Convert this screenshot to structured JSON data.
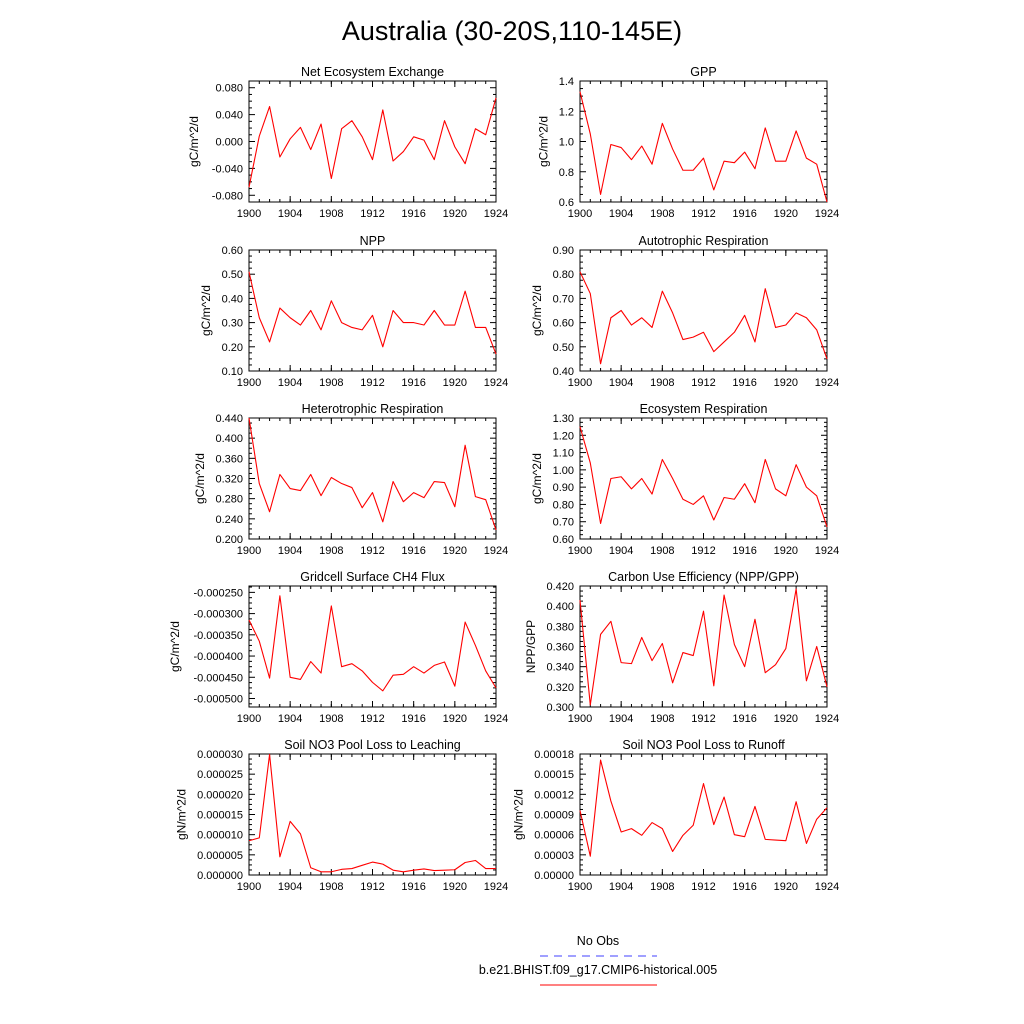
{
  "title": "Australia (30-20S,110-145E)",
  "legend": {
    "entries": [
      {
        "label": "No Obs",
        "color": "#4040ff",
        "dash": true
      },
      {
        "label": "b.e21.BHIST.f09_g17.CMIP6-historical.005",
        "color": "#ff0000",
        "dash": false
      }
    ]
  },
  "line_color": "#ff0000",
  "chart_data": [
    {
      "type": "line",
      "title": "Net Ecosystem Exchange",
      "ylabel": "gC/m^2/d",
      "xlim": [
        1900,
        1924
      ],
      "ylim": [
        -0.09,
        0.09
      ],
      "yticks": [
        -0.08,
        -0.04,
        0.0,
        0.04,
        0.08
      ],
      "ytick_labels": [
        "-0.080",
        "-0.040",
        "0.000",
        "0.040",
        "0.080"
      ],
      "xticks": [
        1900,
        1904,
        1908,
        1912,
        1916,
        1920,
        1924
      ],
      "xtick_labels": [
        "1900",
        "1904",
        "1908",
        "1912",
        "1916",
        "1920",
        "1924"
      ],
      "x": [
        1900,
        1901,
        1902,
        1903,
        1904,
        1905,
        1906,
        1907,
        1908,
        1909,
        1910,
        1911,
        1912,
        1913,
        1914,
        1915,
        1916,
        1917,
        1918,
        1919,
        1920,
        1921,
        1922,
        1923,
        1924
      ],
      "values": [
        -0.068,
        0.008,
        0.052,
        -0.023,
        0.004,
        0.021,
        -0.012,
        0.026,
        -0.055,
        0.019,
        0.031,
        0.007,
        -0.027,
        0.047,
        -0.029,
        -0.015,
        0.007,
        0.002,
        -0.027,
        0.031,
        -0.008,
        -0.033,
        0.019,
        0.01,
        0.065
      ]
    },
    {
      "type": "line",
      "title": "GPP",
      "ylabel": "gC/m^2/d",
      "xlim": [
        1900,
        1924
      ],
      "ylim": [
        0.6,
        1.4
      ],
      "yticks": [
        0.6,
        0.8,
        1.0,
        1.2,
        1.4
      ],
      "ytick_labels": [
        "0.6",
        "0.8",
        "1.0",
        "1.2",
        "1.4"
      ],
      "xticks": [
        1900,
        1904,
        1908,
        1912,
        1916,
        1920,
        1924
      ],
      "xtick_labels": [
        "1900",
        "1904",
        "1908",
        "1912",
        "1916",
        "1920",
        "1924"
      ],
      "x": [
        1900,
        1901,
        1902,
        1903,
        1904,
        1905,
        1906,
        1907,
        1908,
        1909,
        1910,
        1911,
        1912,
        1913,
        1914,
        1915,
        1916,
        1917,
        1918,
        1919,
        1920,
        1921,
        1922,
        1923,
        1924
      ],
      "values": [
        1.33,
        1.05,
        0.65,
        0.98,
        0.96,
        0.88,
        0.97,
        0.85,
        1.12,
        0.95,
        0.81,
        0.81,
        0.89,
        0.68,
        0.87,
        0.86,
        0.93,
        0.82,
        1.09,
        0.87,
        0.87,
        1.07,
        0.89,
        0.85,
        0.6
      ]
    },
    {
      "type": "line",
      "title": "NPP",
      "ylabel": "gC/m^2/d",
      "xlim": [
        1900,
        1924
      ],
      "ylim": [
        0.1,
        0.6
      ],
      "yticks": [
        0.1,
        0.2,
        0.3,
        0.4,
        0.5,
        0.6
      ],
      "ytick_labels": [
        "0.10",
        "0.20",
        "0.30",
        "0.40",
        "0.50",
        "0.60"
      ],
      "xticks": [
        1900,
        1904,
        1908,
        1912,
        1916,
        1920,
        1924
      ],
      "xtick_labels": [
        "1900",
        "1904",
        "1908",
        "1912",
        "1916",
        "1920",
        "1924"
      ],
      "x": [
        1900,
        1901,
        1902,
        1903,
        1904,
        1905,
        1906,
        1907,
        1908,
        1909,
        1910,
        1911,
        1912,
        1913,
        1914,
        1915,
        1916,
        1917,
        1918,
        1919,
        1920,
        1921,
        1922,
        1923,
        1924
      ],
      "values": [
        0.51,
        0.32,
        0.22,
        0.36,
        0.32,
        0.29,
        0.35,
        0.27,
        0.39,
        0.3,
        0.28,
        0.27,
        0.33,
        0.2,
        0.35,
        0.3,
        0.3,
        0.29,
        0.35,
        0.29,
        0.29,
        0.43,
        0.28,
        0.28,
        0.17
      ]
    },
    {
      "type": "line",
      "title": "Autotrophic Respiration",
      "ylabel": "gC/m^2/d",
      "xlim": [
        1900,
        1924
      ],
      "ylim": [
        0.4,
        0.9
      ],
      "yticks": [
        0.4,
        0.5,
        0.6,
        0.7,
        0.8,
        0.9
      ],
      "ytick_labels": [
        "0.40",
        "0.50",
        "0.60",
        "0.70",
        "0.80",
        "0.90"
      ],
      "xticks": [
        1900,
        1904,
        1908,
        1912,
        1916,
        1920,
        1924
      ],
      "xtick_labels": [
        "1900",
        "1904",
        "1908",
        "1912",
        "1916",
        "1920",
        "1924"
      ],
      "x": [
        1900,
        1901,
        1902,
        1903,
        1904,
        1905,
        1906,
        1907,
        1908,
        1909,
        1910,
        1911,
        1912,
        1913,
        1914,
        1915,
        1916,
        1917,
        1918,
        1919,
        1920,
        1921,
        1922,
        1923,
        1924
      ],
      "values": [
        0.81,
        0.72,
        0.43,
        0.62,
        0.65,
        0.59,
        0.62,
        0.58,
        0.73,
        0.64,
        0.53,
        0.54,
        0.56,
        0.48,
        0.52,
        0.56,
        0.63,
        0.52,
        0.74,
        0.58,
        0.59,
        0.64,
        0.62,
        0.57,
        0.45
      ]
    },
    {
      "type": "line",
      "title": "Heterotrophic Respiration",
      "ylabel": "gC/m^2/d",
      "xlim": [
        1900,
        1924
      ],
      "ylim": [
        0.2,
        0.44
      ],
      "yticks": [
        0.2,
        0.24,
        0.28,
        0.32,
        0.36,
        0.4,
        0.44
      ],
      "ytick_labels": [
        "0.200",
        "0.240",
        "0.280",
        "0.320",
        "0.360",
        "0.400",
        "0.440"
      ],
      "xticks": [
        1900,
        1904,
        1908,
        1912,
        1916,
        1920,
        1924
      ],
      "xtick_labels": [
        "1900",
        "1904",
        "1908",
        "1912",
        "1916",
        "1920",
        "1924"
      ],
      "x": [
        1900,
        1901,
        1902,
        1903,
        1904,
        1905,
        1906,
        1907,
        1908,
        1909,
        1910,
        1911,
        1912,
        1913,
        1914,
        1915,
        1916,
        1917,
        1918,
        1919,
        1920,
        1921,
        1922,
        1923,
        1924
      ],
      "values": [
        0.44,
        0.31,
        0.254,
        0.328,
        0.3,
        0.296,
        0.328,
        0.286,
        0.322,
        0.31,
        0.302,
        0.262,
        0.292,
        0.234,
        0.314,
        0.274,
        0.292,
        0.282,
        0.314,
        0.312,
        0.264,
        0.386,
        0.284,
        0.278,
        0.218
      ]
    },
    {
      "type": "line",
      "title": "Ecosystem Respiration",
      "ylabel": "gC/m^2/d",
      "xlim": [
        1900,
        1924
      ],
      "ylim": [
        0.6,
        1.3
      ],
      "yticks": [
        0.6,
        0.7,
        0.8,
        0.9,
        1.0,
        1.1,
        1.2,
        1.3
      ],
      "ytick_labels": [
        "0.60",
        "0.70",
        "0.80",
        "0.90",
        "1.00",
        "1.10",
        "1.20",
        "1.30"
      ],
      "xticks": [
        1900,
        1904,
        1908,
        1912,
        1916,
        1920,
        1924
      ],
      "xtick_labels": [
        "1900",
        "1904",
        "1908",
        "1912",
        "1916",
        "1920",
        "1924"
      ],
      "x": [
        1900,
        1901,
        1902,
        1903,
        1904,
        1905,
        1906,
        1907,
        1908,
        1909,
        1910,
        1911,
        1912,
        1913,
        1914,
        1915,
        1916,
        1917,
        1918,
        1919,
        1920,
        1921,
        1922,
        1923,
        1924
      ],
      "values": [
        1.25,
        1.04,
        0.69,
        0.95,
        0.96,
        0.89,
        0.95,
        0.86,
        1.06,
        0.95,
        0.83,
        0.8,
        0.85,
        0.71,
        0.84,
        0.83,
        0.92,
        0.81,
        1.06,
        0.89,
        0.85,
        1.03,
        0.9,
        0.85,
        0.67
      ]
    },
    {
      "type": "line",
      "title": "Gridcell Surface CH4 Flux",
      "ylabel": "gC/m^2/d",
      "xlim": [
        1900,
        1924
      ],
      "ylim": [
        -0.00052,
        -0.000235
      ],
      "yticks": [
        -0.0005,
        -0.00045,
        -0.0004,
        -0.00035,
        -0.0003,
        -0.00025
      ],
      "ytick_labels": [
        "-0.000500",
        "-0.000450",
        "-0.000400",
        "-0.000350",
        "-0.000300",
        "-0.000250"
      ],
      "xticks": [
        1900,
        1904,
        1908,
        1912,
        1916,
        1920,
        1924
      ],
      "xtick_labels": [
        "1900",
        "1904",
        "1908",
        "1912",
        "1916",
        "1920",
        "1924"
      ],
      "x": [
        1900,
        1901,
        1902,
        1903,
        1904,
        1905,
        1906,
        1907,
        1908,
        1909,
        1910,
        1911,
        1912,
        1913,
        1914,
        1915,
        1916,
        1917,
        1918,
        1919,
        1920,
        1921,
        1922,
        1923,
        1924
      ],
      "values": [
        -0.000315,
        -0.000365,
        -0.000452,
        -0.000258,
        -0.00045,
        -0.000455,
        -0.000413,
        -0.00044,
        -0.000282,
        -0.000425,
        -0.000418,
        -0.000435,
        -0.000462,
        -0.000482,
        -0.000445,
        -0.000443,
        -0.000425,
        -0.00044,
        -0.000422,
        -0.000414,
        -0.000471,
        -0.00032,
        -0.000375,
        -0.000435,
        -0.000475
      ]
    },
    {
      "type": "line",
      "title": "Carbon Use Efficiency (NPP/GPP)",
      "ylabel": "NPP/GPP",
      "xlim": [
        1900,
        1924
      ],
      "ylim": [
        0.3,
        0.42
      ],
      "yticks": [
        0.3,
        0.32,
        0.34,
        0.36,
        0.38,
        0.4,
        0.42
      ],
      "ytick_labels": [
        "0.300",
        "0.320",
        "0.340",
        "0.360",
        "0.380",
        "0.400",
        "0.420"
      ],
      "xticks": [
        1900,
        1904,
        1908,
        1912,
        1916,
        1920,
        1924
      ],
      "xtick_labels": [
        "1900",
        "1904",
        "1908",
        "1912",
        "1916",
        "1920",
        "1924"
      ],
      "x": [
        1900,
        1901,
        1902,
        1903,
        1904,
        1905,
        1906,
        1907,
        1908,
        1909,
        1910,
        1911,
        1912,
        1913,
        1914,
        1915,
        1916,
        1917,
        1918,
        1919,
        1920,
        1921,
        1922,
        1923,
        1924
      ],
      "values": [
        0.406,
        0.302,
        0.372,
        0.385,
        0.344,
        0.343,
        0.369,
        0.346,
        0.363,
        0.324,
        0.354,
        0.351,
        0.395,
        0.321,
        0.411,
        0.362,
        0.34,
        0.387,
        0.334,
        0.342,
        0.358,
        0.417,
        0.326,
        0.36,
        0.32
      ]
    },
    {
      "type": "line",
      "title": "Soil NO3 Pool Loss to Leaching",
      "ylabel": "gN/m^2/d",
      "xlim": [
        1900,
        1924
      ],
      "ylim": [
        0.0,
        3e-05
      ],
      "yticks": [
        0.0,
        5e-06,
        1e-05,
        1.5e-05,
        2e-05,
        2.5e-05,
        3e-05
      ],
      "ytick_labels": [
        "0.000000",
        "0.000005",
        "0.000010",
        "0.000015",
        "0.000020",
        "0.000025",
        "0.000030"
      ],
      "xticks": [
        1900,
        1904,
        1908,
        1912,
        1916,
        1920,
        1924
      ],
      "xtick_labels": [
        "1900",
        "1904",
        "1908",
        "1912",
        "1916",
        "1920",
        "1924"
      ],
      "x": [
        1900,
        1901,
        1902,
        1903,
        1904,
        1905,
        1906,
        1907,
        1908,
        1909,
        1910,
        1911,
        1912,
        1913,
        1914,
        1915,
        1916,
        1917,
        1918,
        1919,
        1920,
        1921,
        1922,
        1923,
        1924
      ],
      "values": [
        8.5e-06,
        9.2e-06,
        2.99e-05,
        4.5e-06,
        1.33e-05,
        1.02e-05,
        1.8e-06,
        8e-07,
        8e-07,
        1.4e-06,
        1.6e-06,
        2.4e-06,
        3.2e-06,
        2.7e-06,
        1.2e-06,
        8e-07,
        1.2e-06,
        1.5e-06,
        1.1e-06,
        1.2e-06,
        1.3e-06,
        3.1e-06,
        3.6e-06,
        1.6e-06,
        1.6e-06
      ]
    },
    {
      "type": "line",
      "title": "Soil NO3 Pool Loss to Runoff",
      "ylabel": "gN/m^2/d",
      "xlim": [
        1900,
        1924
      ],
      "ylim": [
        0.0,
        0.00018
      ],
      "yticks": [
        0.0,
        3e-05,
        6e-05,
        9e-05,
        0.00012,
        0.00015,
        0.00018
      ],
      "ytick_labels": [
        "0.00000",
        "0.00003",
        "0.00006",
        "0.00009",
        "0.00012",
        "0.00015",
        "0.00018"
      ],
      "xticks": [
        1900,
        1904,
        1908,
        1912,
        1916,
        1920,
        1924
      ],
      "xtick_labels": [
        "1900",
        "1904",
        "1908",
        "1912",
        "1916",
        "1920",
        "1924"
      ],
      "x": [
        1900,
        1901,
        1902,
        1903,
        1904,
        1905,
        1906,
        1907,
        1908,
        1909,
        1910,
        1911,
        1912,
        1913,
        1914,
        1915,
        1916,
        1917,
        1918,
        1919,
        1920,
        1921,
        1922,
        1923,
        1924
      ],
      "values": [
        9.6e-05,
        2.8e-05,
        0.000171,
        0.00011,
        6.4e-05,
        6.9e-05,
        5.9e-05,
        7.8e-05,
        6.9e-05,
        3.5e-05,
        5.9e-05,
        7.4e-05,
        0.000136,
        7.5e-05,
        0.000116,
        6e-05,
        5.7e-05,
        0.000102,
        5.3e-05,
        5.2e-05,
        5.1e-05,
        0.000109,
        4.7e-05,
        8.3e-05,
        0.0001
      ]
    }
  ]
}
